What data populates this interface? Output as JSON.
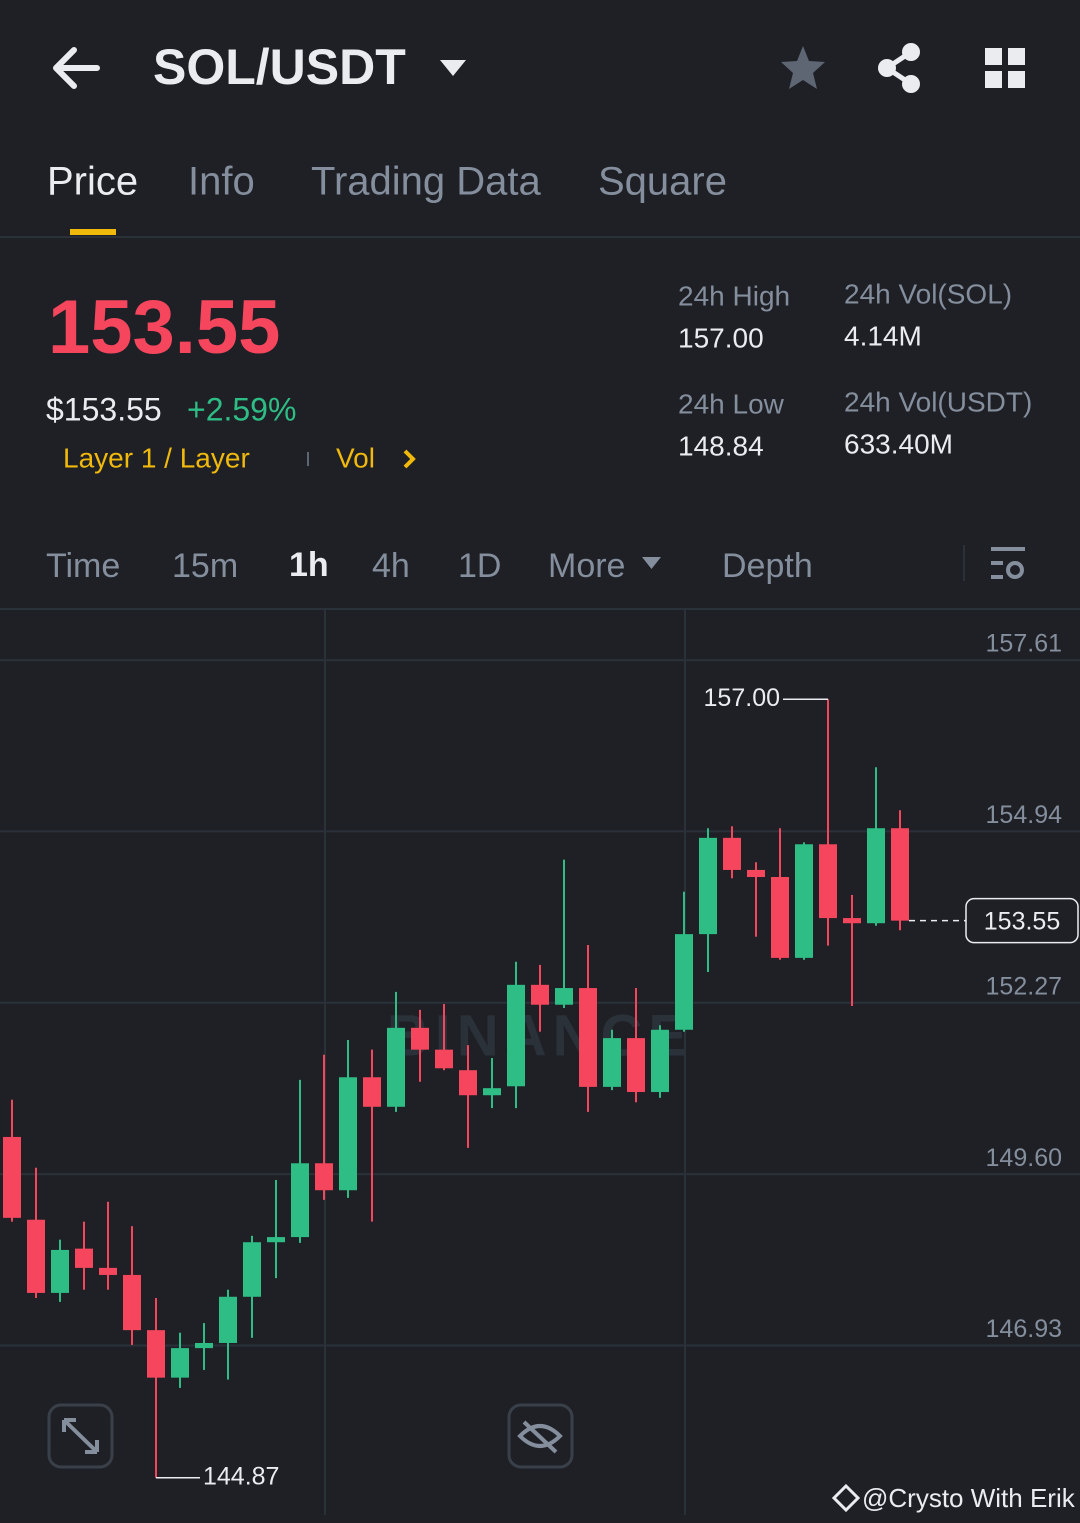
{
  "header": {
    "pair": "SOL/USDT",
    "tabs": [
      "Price",
      "Info",
      "Trading Data",
      "Square"
    ]
  },
  "summary": {
    "price": "153.55",
    "usd_price": "$153.55",
    "change": "+2.59%",
    "tag": "Layer 1 / Layer",
    "vol_link": "Vol",
    "stats": [
      {
        "label": "24h High",
        "value": "157.00"
      },
      {
        "label": "24h Vol(SOL)",
        "value": "4.14M"
      },
      {
        "label": "24h Low",
        "value": "148.84"
      },
      {
        "label": "24h Vol(USDT)",
        "value": "633.40M"
      }
    ]
  },
  "timeframes": [
    "Time",
    "15m",
    "1h",
    "4h",
    "1D",
    "More",
    "Depth"
  ],
  "chart_data": {
    "type": "candlestick",
    "watermark": "BINANCE",
    "up_color": "#2ebd85",
    "down_color": "#f6465d",
    "ylim": [
      144.29,
      158.39
    ],
    "yticks": [
      {
        "value": 157.61,
        "label": "157.61"
      },
      {
        "value": 154.94,
        "label": "154.94"
      },
      {
        "value": 152.27,
        "label": "152.27"
      },
      {
        "value": 149.6,
        "label": "149.60"
      },
      {
        "value": 146.93,
        "label": "146.93"
      }
    ],
    "grid": true,
    "open": [
      150.18,
      148.89,
      147.75,
      148.44,
      148.14,
      148.03,
      147.17,
      146.43,
      146.89,
      146.97,
      147.69,
      148.54,
      148.62,
      149.77,
      149.35,
      151.11,
      150.65,
      151.88,
      151.54,
      151.22,
      150.83,
      150.97,
      152.55,
      152.24,
      152.5,
      150.96,
      151.72,
      150.88,
      151.85,
      153.34,
      154.84,
      154.34,
      154.23,
      152.97,
      154.74,
      153.59,
      153.51,
      154.99
    ],
    "high": [
      150.76,
      149.7,
      148.58,
      148.86,
      149.17,
      148.79,
      147.67,
      147.13,
      147.28,
      147.8,
      148.64,
      149.51,
      151.07,
      151.46,
      151.69,
      151.54,
      152.44,
      152.16,
      152.25,
      151.61,
      151.41,
      152.91,
      152.86,
      154.5,
      153.17,
      151.85,
      152.5,
      151.92,
      154.0,
      154.99,
      155.02,
      154.46,
      154.99,
      154.77,
      157.0,
      153.95,
      155.94,
      155.27
    ],
    "low": [
      148.86,
      147.67,
      147.61,
      147.8,
      147.8,
      146.94,
      144.87,
      146.27,
      146.55,
      146.4,
      147.05,
      147.98,
      148.53,
      149.2,
      149.23,
      148.86,
      150.57,
      151.04,
      151.22,
      150.01,
      150.63,
      150.63,
      151.82,
      152.19,
      150.57,
      150.91,
      150.72,
      150.79,
      151.82,
      152.75,
      154.21,
      153.3,
      152.94,
      152.94,
      153.16,
      152.22,
      153.47,
      153.4
    ],
    "close": [
      148.92,
      147.75,
      148.42,
      148.14,
      148.03,
      147.17,
      146.43,
      146.89,
      146.97,
      147.69,
      148.54,
      148.62,
      149.77,
      149.35,
      151.11,
      150.65,
      151.88,
      151.54,
      151.25,
      150.83,
      150.94,
      152.55,
      152.24,
      152.5,
      150.96,
      151.72,
      150.88,
      151.85,
      153.34,
      154.84,
      154.34,
      154.23,
      152.97,
      154.74,
      153.59,
      153.51,
      154.99,
      153.55
    ],
    "high_marker": {
      "value": 157.0,
      "label": "157.00"
    },
    "low_marker": {
      "value": 144.87,
      "label": "144.87"
    },
    "last_price": {
      "value": 153.55,
      "label": "153.55"
    }
  },
  "footer": {
    "credit": "@Crysto With Erik"
  }
}
